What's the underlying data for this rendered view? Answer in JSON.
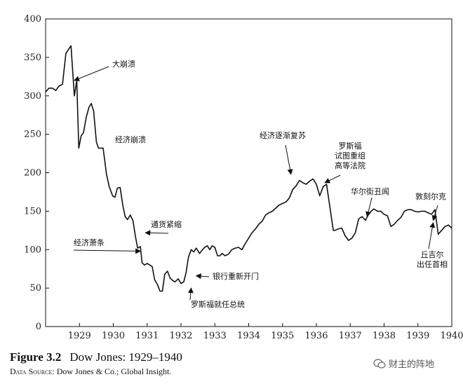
{
  "chart_data": {
    "type": "line",
    "title": "",
    "xlabel": "",
    "ylabel": "",
    "xlim": [
      1928.5,
      1940.5
    ],
    "ylim": [
      0,
      400
    ],
    "yticks": [
      0,
      50,
      100,
      150,
      200,
      250,
      300,
      350,
      400
    ],
    "xticks": [
      "1929",
      "1930",
      "1931",
      "1932",
      "1933",
      "1934",
      "1935",
      "1936",
      "1937",
      "1938",
      "1939",
      "1940"
    ],
    "grid": false,
    "series": [
      {
        "x": [
          1928.5,
          1928.6,
          1928.7,
          1928.8,
          1928.9,
          1929.0,
          1929.1,
          1929.2,
          1929.25,
          1929.35,
          1929.42,
          1929.48,
          1929.55,
          1929.62,
          1929.7,
          1929.78,
          1929.85,
          1929.92,
          1930.0,
          1930.06,
          1930.12,
          1930.2,
          1930.3,
          1930.38,
          1930.48,
          1930.55,
          1930.62,
          1930.7,
          1930.78,
          1930.85,
          1930.92,
          1931.0,
          1931.08,
          1931.15,
          1931.22,
          1931.3,
          1931.35,
          1931.42,
          1931.5,
          1931.58,
          1931.65,
          1931.72,
          1931.8,
          1931.88,
          1931.95,
          1932.02,
          1932.1,
          1932.18,
          1932.25,
          1932.32,
          1932.42,
          1932.5,
          1932.58,
          1932.65,
          1932.72,
          1932.8,
          1932.88,
          1932.95,
          1933.05,
          1933.12,
          1933.2,
          1933.28,
          1933.35,
          1933.42,
          1933.5,
          1933.58,
          1933.65,
          1933.72,
          1933.8,
          1933.9,
          1934.0,
          1934.1,
          1934.2,
          1934.3,
          1934.4,
          1934.5,
          1934.6,
          1934.7,
          1934.8,
          1934.9,
          1935.0,
          1935.1,
          1935.2,
          1935.3,
          1935.4,
          1935.5,
          1935.6,
          1935.7,
          1935.8,
          1935.9,
          1936.0,
          1936.1,
          1936.2,
          1936.3,
          1936.4,
          1936.5,
          1936.6,
          1936.7,
          1936.8,
          1936.9,
          1937.0,
          1937.05,
          1937.15,
          1937.25,
          1937.35,
          1937.45,
          1937.55,
          1937.65,
          1937.75,
          1937.85,
          1937.95,
          1938.05,
          1938.12,
          1938.2,
          1938.3,
          1938.4,
          1938.5,
          1938.6,
          1938.7,
          1938.8,
          1938.9,
          1939.0,
          1939.1,
          1939.2,
          1939.3,
          1939.4,
          1939.5,
          1939.6,
          1939.7,
          1939.8,
          1939.9,
          1940.0,
          1940.1,
          1940.2,
          1940.3,
          1940.4,
          1940.5
        ],
        "y": [
          305,
          310,
          310,
          307,
          313,
          315,
          355,
          362,
          365,
          300,
          320,
          232,
          248,
          252,
          272,
          285,
          290,
          280,
          240,
          232,
          232,
          232,
          198,
          182,
          170,
          168,
          180,
          181,
          158,
          143,
          139,
          145,
          138,
          118,
          102,
          104,
          83,
          80,
          82,
          80,
          78,
          61,
          55,
          46,
          46,
          68,
          72,
          63,
          60,
          58,
          62,
          56,
          58,
          70,
          90,
          100,
          97,
          102,
          95,
          99,
          103,
          105,
          100,
          105,
          103,
          92,
          92,
          95,
          92,
          94,
          100,
          102,
          103,
          100,
          108,
          115,
          122,
          127,
          133,
          137,
          145,
          148,
          150,
          154,
          158,
          160,
          162,
          167,
          178,
          183,
          190,
          187,
          185,
          189,
          192,
          185,
          170,
          182,
          185,
          155,
          125,
          125,
          127,
          128,
          118,
          112,
          115,
          122,
          140,
          143,
          138,
          147,
          150,
          153,
          150,
          150,
          146,
          144,
          130,
          133,
          138,
          142,
          150,
          152,
          152,
          150,
          149,
          150,
          150,
          148,
          146,
          152,
          120,
          125,
          130,
          132,
          128
        ]
      }
    ],
    "annotations": [
      {
        "text": "大崩溃",
        "x": 1929.35,
        "y": 320
      },
      {
        "text": "经济崩溃",
        "x": 1930.5,
        "y": 240
      },
      {
        "text": "通货紧缩",
        "x": 1931.45,
        "y": 122
      },
      {
        "text": "经济萧条",
        "x": 1931.3,
        "y": 98
      },
      {
        "text": "银行重新开门",
        "x": 1932.95,
        "y": 66
      },
      {
        "text": "罗斯福就任总统",
        "x": 1932.8,
        "y": 50
      },
      {
        "text": "经济逐渐复苏",
        "x": 1935.75,
        "y": 198
      },
      {
        "text": "罗斯福\n试图重组\n高等法院",
        "x": 1936.75,
        "y": 187
      },
      {
        "text": "华尔街丑闻",
        "x": 1938.0,
        "y": 143
      },
      {
        "text": "敦刻尔克",
        "x": 1939.95,
        "y": 138
      },
      {
        "text": "丘吉尔\n出任首相",
        "x": 1939.95,
        "y": 135
      }
    ]
  },
  "caption": {
    "figure_label": "Figure 3.2",
    "title": "Dow Jones: 1929–1940",
    "source_label": "Data Source:",
    "source_text": "Dow Jones & Co.; Global Insight."
  },
  "watermark": {
    "text": "财主的阵地",
    "icon": "wechat-icon"
  }
}
